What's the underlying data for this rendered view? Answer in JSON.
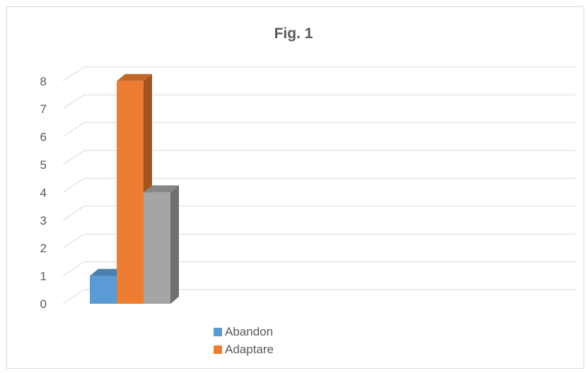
{
  "chart_data": {
    "type": "bar",
    "title": "Fig. 1",
    "categories": [
      ""
    ],
    "series": [
      {
        "name": "Abandon",
        "values": [
          1
        ],
        "color": "#5b9bd5"
      },
      {
        "name": "Adaptare",
        "values": [
          8
        ],
        "color": "#ed7d31"
      },
      {
        "values": [
          4
        ],
        "color": "#a5a5a5"
      }
    ],
    "ylim": [
      0,
      8
    ],
    "yticks": [
      "0",
      "1",
      "2",
      "3",
      "4",
      "5",
      "6",
      "7",
      "8"
    ],
    "grid": true,
    "legend_position": "bottom-left",
    "style": "3d-column"
  }
}
